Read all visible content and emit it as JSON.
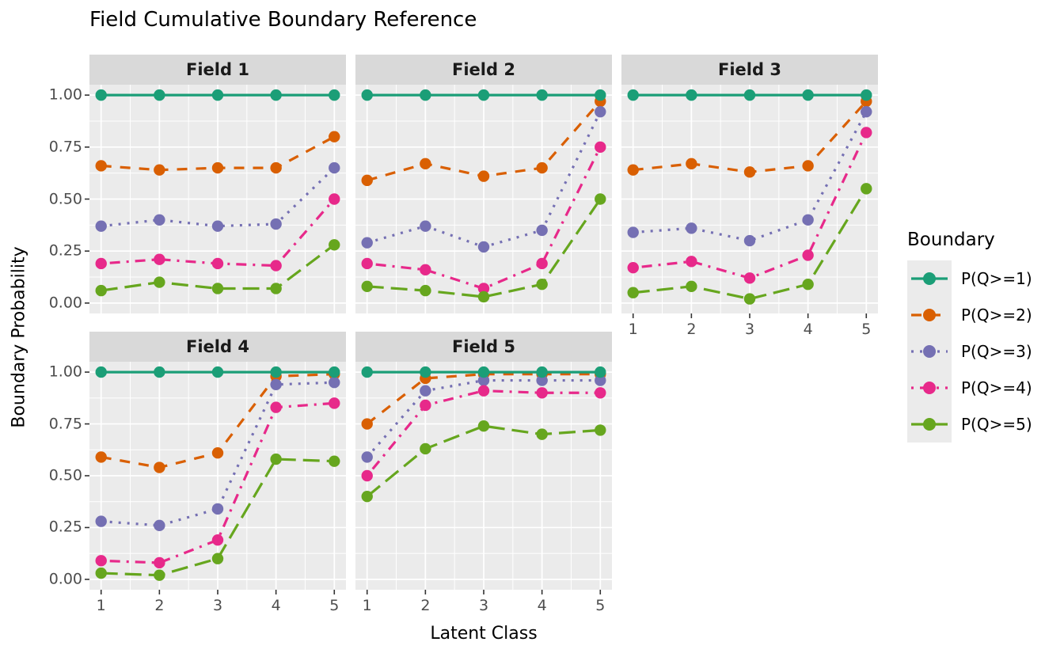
{
  "title": "Field Cumulative Boundary Reference",
  "legend": {
    "title": "Boundary"
  },
  "chart_data": {
    "type": "line",
    "title": "Field Cumulative Boundary Reference",
    "xlabel": "Latent Class",
    "ylabel": "Boundary Probability",
    "x": [
      1,
      2,
      3,
      4,
      5
    ],
    "x_tick_labels": [
      "1",
      "2",
      "3",
      "4",
      "5"
    ],
    "y_ticks": [
      0,
      0.25,
      0.5,
      0.75,
      1
    ],
    "y_tick_labels": [
      "0.00",
      "0.25",
      "0.50",
      "0.75",
      "1.00"
    ],
    "ylim": [
      0,
      1
    ],
    "xlim_expanded": [
      0.8,
      5.2
    ],
    "grid": true,
    "legend_position": "right",
    "panel_background": "#ebebeb",
    "strip_background": "#d9d9d9",
    "series_styles": [
      {
        "name": "P(Q>=1)",
        "color": "#1B9E77",
        "linetype": "solid",
        "dash": ""
      },
      {
        "name": "P(Q>=2)",
        "color": "#D95F02",
        "linetype": "dashed",
        "dash": "13,11"
      },
      {
        "name": "P(Q>=3)",
        "color": "#7570B3",
        "linetype": "dotted",
        "dash": "3,8"
      },
      {
        "name": "P(Q>=4)",
        "color": "#E7298A",
        "linetype": "dotdash",
        "dash": "3,8,13,8"
      },
      {
        "name": "P(Q>=5)",
        "color": "#66A61E",
        "linetype": "longdash",
        "dash": "21,9"
      }
    ],
    "facets": [
      {
        "label": "Field 1",
        "series": [
          {
            "name": "P(Q>=1)",
            "values": [
              1.0,
              1.0,
              1.0,
              1.0,
              1.0
            ]
          },
          {
            "name": "P(Q>=2)",
            "values": [
              0.66,
              0.64,
              0.65,
              0.65,
              0.8
            ]
          },
          {
            "name": "P(Q>=3)",
            "values": [
              0.37,
              0.4,
              0.37,
              0.38,
              0.65
            ]
          },
          {
            "name": "P(Q>=4)",
            "values": [
              0.19,
              0.21,
              0.19,
              0.18,
              0.5
            ]
          },
          {
            "name": "P(Q>=5)",
            "values": [
              0.06,
              0.1,
              0.07,
              0.07,
              0.28
            ]
          }
        ]
      },
      {
        "label": "Field 2",
        "series": [
          {
            "name": "P(Q>=1)",
            "values": [
              1.0,
              1.0,
              1.0,
              1.0,
              1.0
            ]
          },
          {
            "name": "P(Q>=2)",
            "values": [
              0.59,
              0.67,
              0.61,
              0.65,
              0.97
            ]
          },
          {
            "name": "P(Q>=3)",
            "values": [
              0.29,
              0.37,
              0.27,
              0.35,
              0.92
            ]
          },
          {
            "name": "P(Q>=4)",
            "values": [
              0.19,
              0.16,
              0.07,
              0.19,
              0.75
            ]
          },
          {
            "name": "P(Q>=5)",
            "values": [
              0.08,
              0.06,
              0.03,
              0.09,
              0.5
            ]
          }
        ]
      },
      {
        "label": "Field 3",
        "series": [
          {
            "name": "P(Q>=1)",
            "values": [
              1.0,
              1.0,
              1.0,
              1.0,
              1.0
            ]
          },
          {
            "name": "P(Q>=2)",
            "values": [
              0.64,
              0.67,
              0.63,
              0.66,
              0.97
            ]
          },
          {
            "name": "P(Q>=3)",
            "values": [
              0.34,
              0.36,
              0.3,
              0.4,
              0.92
            ]
          },
          {
            "name": "P(Q>=4)",
            "values": [
              0.17,
              0.2,
              0.12,
              0.23,
              0.82
            ]
          },
          {
            "name": "P(Q>=5)",
            "values": [
              0.05,
              0.08,
              0.02,
              0.09,
              0.55
            ]
          }
        ]
      },
      {
        "label": "Field 4",
        "series": [
          {
            "name": "P(Q>=1)",
            "values": [
              1.0,
              1.0,
              1.0,
              1.0,
              1.0
            ]
          },
          {
            "name": "P(Q>=2)",
            "values": [
              0.59,
              0.54,
              0.61,
              0.98,
              0.99
            ]
          },
          {
            "name": "P(Q>=3)",
            "values": [
              0.28,
              0.26,
              0.34,
              0.94,
              0.95
            ]
          },
          {
            "name": "P(Q>=4)",
            "values": [
              0.09,
              0.08,
              0.19,
              0.83,
              0.85
            ]
          },
          {
            "name": "P(Q>=5)",
            "values": [
              0.03,
              0.02,
              0.1,
              0.58,
              0.57
            ]
          }
        ]
      },
      {
        "label": "Field 5",
        "series": [
          {
            "name": "P(Q>=1)",
            "values": [
              1.0,
              1.0,
              1.0,
              1.0,
              1.0
            ]
          },
          {
            "name": "P(Q>=2)",
            "values": [
              0.75,
              0.97,
              0.99,
              0.99,
              0.99
            ]
          },
          {
            "name": "P(Q>=3)",
            "values": [
              0.59,
              0.91,
              0.96,
              0.96,
              0.96
            ]
          },
          {
            "name": "P(Q>=4)",
            "values": [
              0.5,
              0.84,
              0.91,
              0.9,
              0.9
            ]
          },
          {
            "name": "P(Q>=5)",
            "values": [
              0.4,
              0.63,
              0.74,
              0.7,
              0.72
            ]
          }
        ]
      }
    ]
  }
}
